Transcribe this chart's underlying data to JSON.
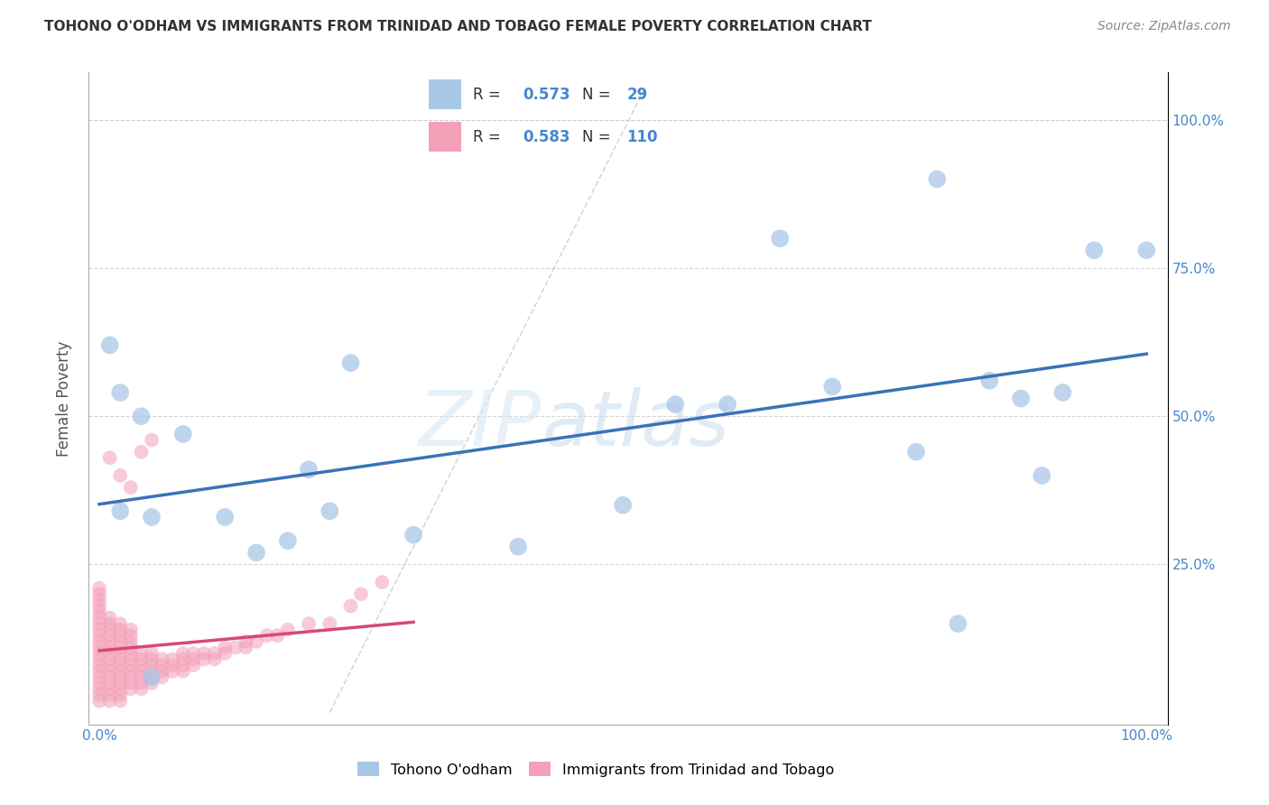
{
  "title": "TOHONO O'ODHAM VS IMMIGRANTS FROM TRINIDAD AND TOBAGO FEMALE POVERTY CORRELATION CHART",
  "source": "Source: ZipAtlas.com",
  "ylabel": "Female Poverty",
  "legend_label_1": "Tohono O'odham",
  "legend_label_2": "Immigrants from Trinidad and Tobago",
  "R1": 0.573,
  "N1": 29,
  "R2": 0.583,
  "N2": 110,
  "color_blue": "#A8C8E8",
  "color_blue_line": "#3A72B8",
  "color_pink": "#F4A0B8",
  "color_pink_line": "#D84878",
  "color_diag": "#C8C8CC",
  "blue_points_x": [
    0.01,
    0.02,
    0.02,
    0.04,
    0.05,
    0.08,
    0.12,
    0.15,
    0.18,
    0.2,
    0.22,
    0.3,
    0.4,
    0.5,
    0.55,
    0.6,
    0.65,
    0.7,
    0.78,
    0.8,
    0.82,
    0.85,
    0.88,
    0.9,
    0.92,
    0.95,
    1.0,
    0.24,
    0.05
  ],
  "blue_points_y": [
    0.62,
    0.54,
    0.34,
    0.5,
    0.33,
    0.47,
    0.33,
    0.27,
    0.29,
    0.41,
    0.34,
    0.3,
    0.28,
    0.35,
    0.52,
    0.52,
    0.8,
    0.55,
    0.44,
    0.9,
    0.15,
    0.56,
    0.53,
    0.4,
    0.54,
    0.78,
    0.78,
    0.59,
    0.06
  ],
  "pink_points_x": [
    0.0,
    0.0,
    0.0,
    0.0,
    0.0,
    0.0,
    0.0,
    0.0,
    0.0,
    0.0,
    0.0,
    0.0,
    0.0,
    0.0,
    0.0,
    0.0,
    0.0,
    0.0,
    0.0,
    0.0,
    0.01,
    0.01,
    0.01,
    0.01,
    0.01,
    0.01,
    0.01,
    0.01,
    0.01,
    0.01,
    0.01,
    0.01,
    0.01,
    0.01,
    0.01,
    0.02,
    0.02,
    0.02,
    0.02,
    0.02,
    0.02,
    0.02,
    0.02,
    0.02,
    0.02,
    0.02,
    0.02,
    0.02,
    0.02,
    0.03,
    0.03,
    0.03,
    0.03,
    0.03,
    0.03,
    0.03,
    0.03,
    0.03,
    0.03,
    0.03,
    0.04,
    0.04,
    0.04,
    0.04,
    0.04,
    0.04,
    0.04,
    0.05,
    0.05,
    0.05,
    0.05,
    0.05,
    0.05,
    0.06,
    0.06,
    0.06,
    0.06,
    0.07,
    0.07,
    0.07,
    0.08,
    0.08,
    0.08,
    0.08,
    0.09,
    0.09,
    0.09,
    0.1,
    0.1,
    0.11,
    0.11,
    0.12,
    0.12,
    0.13,
    0.14,
    0.14,
    0.15,
    0.16,
    0.17,
    0.18,
    0.2,
    0.22,
    0.24,
    0.25,
    0.27,
    0.01,
    0.02,
    0.03,
    0.04,
    0.05
  ],
  "pink_points_y": [
    0.02,
    0.03,
    0.04,
    0.05,
    0.06,
    0.07,
    0.08,
    0.09,
    0.1,
    0.11,
    0.12,
    0.13,
    0.14,
    0.15,
    0.16,
    0.17,
    0.18,
    0.19,
    0.2,
    0.21,
    0.02,
    0.03,
    0.04,
    0.05,
    0.06,
    0.07,
    0.08,
    0.09,
    0.1,
    0.11,
    0.12,
    0.13,
    0.14,
    0.15,
    0.16,
    0.02,
    0.03,
    0.04,
    0.05,
    0.06,
    0.07,
    0.08,
    0.09,
    0.1,
    0.11,
    0.12,
    0.13,
    0.14,
    0.15,
    0.04,
    0.05,
    0.06,
    0.07,
    0.08,
    0.09,
    0.1,
    0.11,
    0.12,
    0.13,
    0.14,
    0.04,
    0.05,
    0.06,
    0.07,
    0.08,
    0.09,
    0.1,
    0.05,
    0.06,
    0.07,
    0.08,
    0.09,
    0.1,
    0.06,
    0.07,
    0.08,
    0.09,
    0.07,
    0.08,
    0.09,
    0.07,
    0.08,
    0.09,
    0.1,
    0.08,
    0.09,
    0.1,
    0.09,
    0.1,
    0.09,
    0.1,
    0.1,
    0.11,
    0.11,
    0.11,
    0.12,
    0.12,
    0.13,
    0.13,
    0.14,
    0.15,
    0.15,
    0.18,
    0.2,
    0.22,
    0.43,
    0.4,
    0.38,
    0.44,
    0.46
  ]
}
